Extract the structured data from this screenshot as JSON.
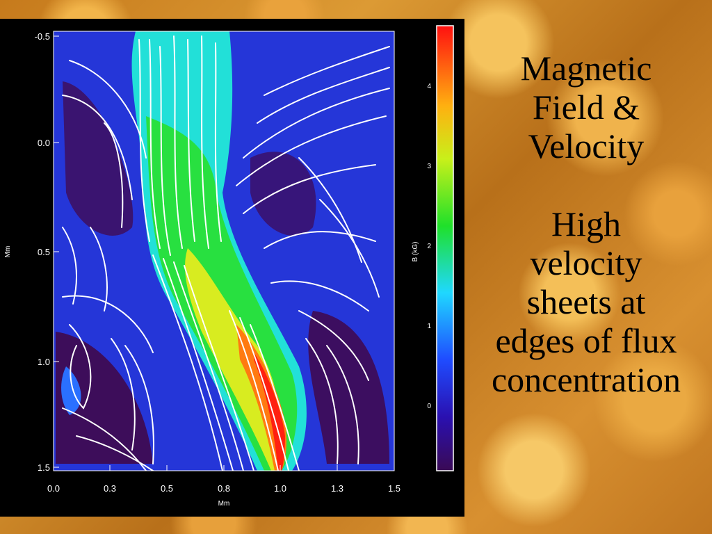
{
  "plot": {
    "y_label": "Mm",
    "x_label": "Mm",
    "x_ticks": [
      "0.0",
      "0.3",
      "0.5",
      "0.8",
      "1.0",
      "1.3",
      "1.5"
    ],
    "y_ticks": [
      "-0.5",
      "0.0",
      "0.5",
      "1.0",
      "1.5"
    ],
    "colorbar_label": "B (kG)",
    "colorbar_ticks": [
      "0",
      "1",
      "2",
      "3",
      "4"
    ],
    "colormap": [
      "#3a0a55",
      "#2c1fd8",
      "#1f5cff",
      "#22e0e0",
      "#1fe01f",
      "#e8f01a",
      "#ff8a10",
      "#ff1010"
    ],
    "field_overlay": "white velocity streamlines"
  },
  "side_text": {
    "title_lines": [
      "Magnetic",
      "Field &",
      "Velocity"
    ],
    "body_lines": [
      "High",
      "velocity",
      "sheets at",
      "edges of flux",
      "concentration"
    ]
  }
}
